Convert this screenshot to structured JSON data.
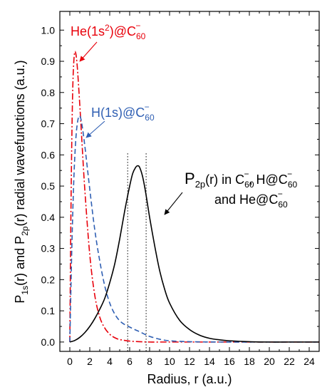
{
  "chart_data": {
    "type": "line",
    "xlabel": "Radius, r (a.u.)",
    "ylabel_parts": {
      "p1": "P",
      "s1": "1s",
      "p2": "(r) and P",
      "s2": "2p",
      "p3": "(r) radial wavefunctions (a.u.)"
    },
    "xlim": [
      -1,
      25
    ],
    "ylim": [
      -0.03,
      1.06
    ],
    "x_ticks": [
      0,
      2,
      4,
      6,
      8,
      10,
      12,
      14,
      16,
      18,
      20,
      22,
      24
    ],
    "y_ticks": [
      0.0,
      0.1,
      0.2,
      0.3,
      0.4,
      0.5,
      0.6,
      0.7,
      0.8,
      0.9,
      1.0
    ],
    "x_tick_labels": [
      "0",
      "2",
      "4",
      "6",
      "8",
      "10",
      "12",
      "14",
      "16",
      "18",
      "20",
      "22",
      "24"
    ],
    "y_tick_labels": [
      "0.0",
      "0.1",
      "0.2",
      "0.3",
      "0.4",
      "0.5",
      "0.6",
      "0.7",
      "0.8",
      "0.9",
      "1.0"
    ],
    "vlines": [
      5.8,
      7.65
    ],
    "series": [
      {
        "key": "he",
        "color": "#e8000b",
        "style": "dash-dot",
        "x": [
          0,
          0.1,
          0.2,
          0.3,
          0.4,
          0.5,
          0.6,
          0.7,
          0.8,
          1.0,
          1.2,
          1.5,
          2.0,
          2.5,
          3.0,
          3.5,
          4.0,
          4.5,
          5.0,
          6.0,
          7.0,
          8.0,
          10,
          15,
          20,
          25
        ],
        "y": [
          0,
          0.38,
          0.65,
          0.82,
          0.9,
          0.93,
          0.925,
          0.9,
          0.86,
          0.76,
          0.65,
          0.49,
          0.28,
          0.15,
          0.08,
          0.045,
          0.025,
          0.014,
          0.008,
          0.003,
          0.001,
          0,
          0,
          0,
          0,
          0
        ]
      },
      {
        "key": "h",
        "color": "#2f5fb3",
        "style": "dashed",
        "x": [
          0,
          0.2,
          0.4,
          0.6,
          0.8,
          1.0,
          1.2,
          1.5,
          2.0,
          2.5,
          3.0,
          3.5,
          4.0,
          4.5,
          5.0,
          5.5,
          6.0,
          6.5,
          7.0,
          7.5,
          8.0,
          9.0,
          10,
          12,
          15,
          20,
          25
        ],
        "y": [
          0,
          0.3,
          0.52,
          0.65,
          0.71,
          0.725,
          0.7,
          0.63,
          0.49,
          0.36,
          0.26,
          0.18,
          0.125,
          0.09,
          0.068,
          0.056,
          0.048,
          0.04,
          0.033,
          0.025,
          0.018,
          0.009,
          0.004,
          0.001,
          0,
          0,
          0
        ]
      },
      {
        "key": "p2p",
        "color": "#000000",
        "style": "solid",
        "x": [
          0,
          0.5,
          1,
          1.5,
          2,
          2.5,
          3,
          3.5,
          4,
          4.5,
          5,
          5.5,
          6,
          6.3,
          6.6,
          6.8,
          7.0,
          7.3,
          7.6,
          8.0,
          8.5,
          9,
          9.5,
          10,
          11,
          12,
          13,
          14,
          15,
          16,
          18,
          20,
          22,
          25
        ],
        "y": [
          0,
          0.005,
          0.015,
          0.03,
          0.05,
          0.075,
          0.105,
          0.14,
          0.19,
          0.25,
          0.33,
          0.42,
          0.5,
          0.54,
          0.56,
          0.565,
          0.56,
          0.53,
          0.48,
          0.4,
          0.31,
          0.23,
          0.17,
          0.125,
          0.07,
          0.04,
          0.022,
          0.012,
          0.007,
          0.004,
          0.001,
          0,
          0,
          0
        ]
      }
    ],
    "annotations": {
      "he": {
        "base": "He(1s",
        "sup": "2",
        "mid": ")@C",
        "sub": "60",
        "sup2": "−",
        "color": "#e8000b"
      },
      "h": {
        "base": "H(1s)@C",
        "sub": "60",
        "sup": "−",
        "color": "#2f5fb3"
      },
      "p2p_line1": {
        "p": "P",
        "s": "2p",
        "rest": "(r) in C",
        "sub": "60",
        "sup": "−",
        "mid": ", H@C",
        "sub2": "60",
        "sup2": "−"
      },
      "p2p_line2": {
        "text": "and He@C",
        "sub": "60",
        "sup": "−"
      }
    }
  }
}
